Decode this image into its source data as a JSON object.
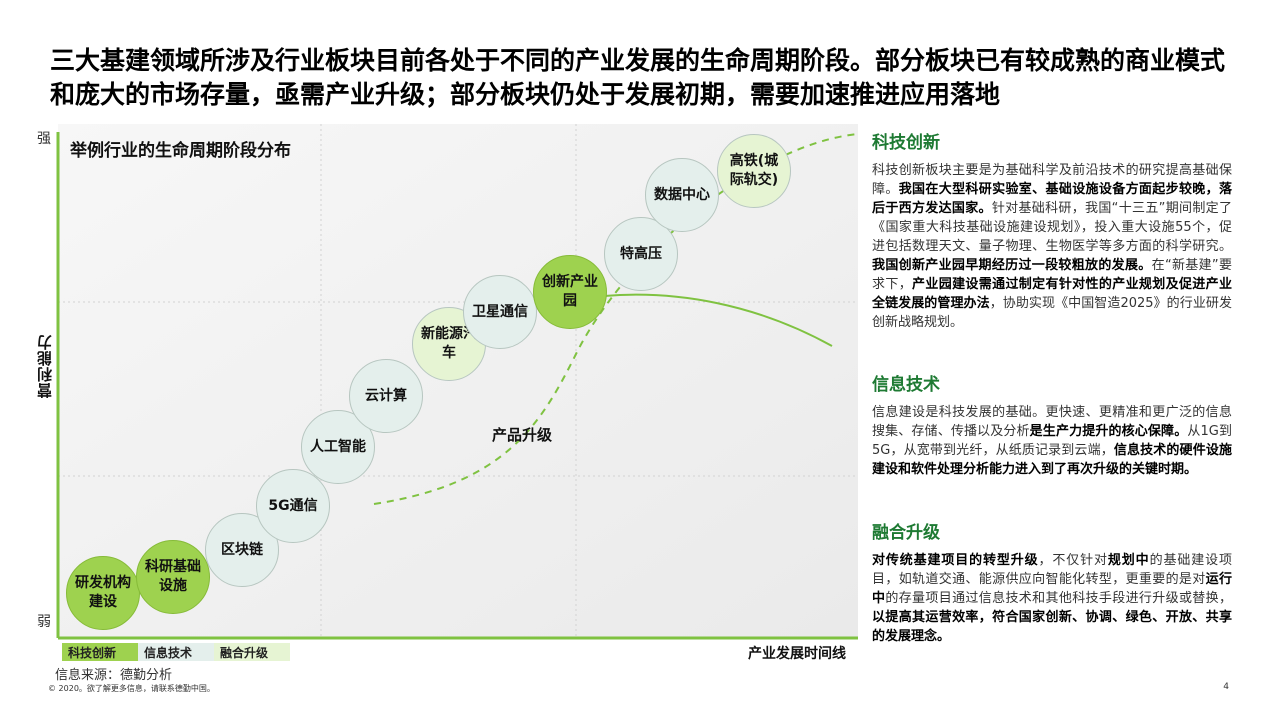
{
  "title": "三大基建领域所涉及行业板块目前各处于不同的产业发展的生命周期阶段。部分板块已有较成熟的商业模式和庞大的市场存量，亟需产业升级；部分板块仍处于发展初期，需要加速推进应用落地",
  "diagram": {
    "title": "举例行业的生命周期阶段分布",
    "y_axis_label": "营利能力",
    "y_axis_top": "强",
    "y_axis_bottom": "弱",
    "x_axis_label": "产业发展时间线",
    "curve_label": "产品升级",
    "colors": {
      "科技创新": "#9ed24f",
      "信息技术": "#e4efec",
      "融合升级": "#e6f4d3",
      "accent_green": "#1e7a33"
    },
    "bubbles": [
      {
        "label": "研发机构建设",
        "category": "科技创新"
      },
      {
        "label": "科研基础设施",
        "category": "科技创新"
      },
      {
        "label": "区块链",
        "category": "信息技术"
      },
      {
        "label": "5G通信",
        "category": "信息技术"
      },
      {
        "label": "人工智能",
        "category": "信息技术"
      },
      {
        "label": "云计算",
        "category": "信息技术"
      },
      {
        "label": "新能源汽车",
        "category": "融合升级"
      },
      {
        "label": "卫星通信",
        "category": "信息技术"
      },
      {
        "label": "创新产业园",
        "category": "科技创新"
      },
      {
        "label": "特高压",
        "category": "信息技术"
      },
      {
        "label": "数据中心",
        "category": "信息技术"
      },
      {
        "label": "高铁(城际轨交)",
        "category": "融合升级"
      }
    ],
    "legend": [
      {
        "label": "科技创新"
      },
      {
        "label": "信息技术"
      },
      {
        "label": "融合升级"
      }
    ]
  },
  "source": "信息来源：德勤分析",
  "copyright": "© 2020。欲了解更多信息，请联系德勤中国。",
  "page_number": "4",
  "sections": [
    {
      "heading": "科技创新",
      "parts": [
        {
          "t": "科技创新板块主要是为基础科学及前沿技术的研究提高基础保障。",
          "b": false
        },
        {
          "t": "我国在大型科研实验室、基础设施设备方面起步较晚，落后于西方发达国家。",
          "b": true
        },
        {
          "t": "针对基础科研，我国“十三五”期间制定了《国家重大科技基础设施建设规划》，投入重大设施55个，促进包括数理天文、量子物理、生物医学等多方面的科学研究。",
          "b": false
        },
        {
          "t": "我国创新产业园早期经历过一段较粗放的发展。",
          "b": true
        },
        {
          "t": "在“新基建”要求下，",
          "b": false
        },
        {
          "t": "产业园建设需通过制定有针对性的产业规划及促进产业全链发展的管理办法",
          "b": true
        },
        {
          "t": "，协助实现《中国智造2025》的行业研发创新战略规划。",
          "b": false
        }
      ]
    },
    {
      "heading": "信息技术",
      "parts": [
        {
          "t": "信息建设是科技发展的基础。更快速、更精准和更广泛的信息搜集、存储、传播以及分析",
          "b": false
        },
        {
          "t": "是生产力提升的核心保障。",
          "b": true
        },
        {
          "t": "从1G到5G，从宽带到光纤，从纸质记录到云端，",
          "b": false
        },
        {
          "t": "信息技术的硬件设施建设和软件处理分析能力进入到了再次升级的关键时期。",
          "b": true
        }
      ]
    },
    {
      "heading": "融合升级",
      "parts": [
        {
          "t": "对传统基建项目的转型升级",
          "b": true
        },
        {
          "t": "，不仅针对",
          "b": false
        },
        {
          "t": "规划中",
          "b": true
        },
        {
          "t": "的基础建设项目，如轨道交通、能源供应向智能化转型，更重要的是对",
          "b": false
        },
        {
          "t": "运行中",
          "b": true
        },
        {
          "t": "的存量项目通过信息技术和其他科技手段进行升级或替换，",
          "b": false
        },
        {
          "t": "以提高其运营效率，符合国家创新、协调、绿色、开放、共享的发展理念。",
          "b": true
        }
      ]
    }
  ]
}
